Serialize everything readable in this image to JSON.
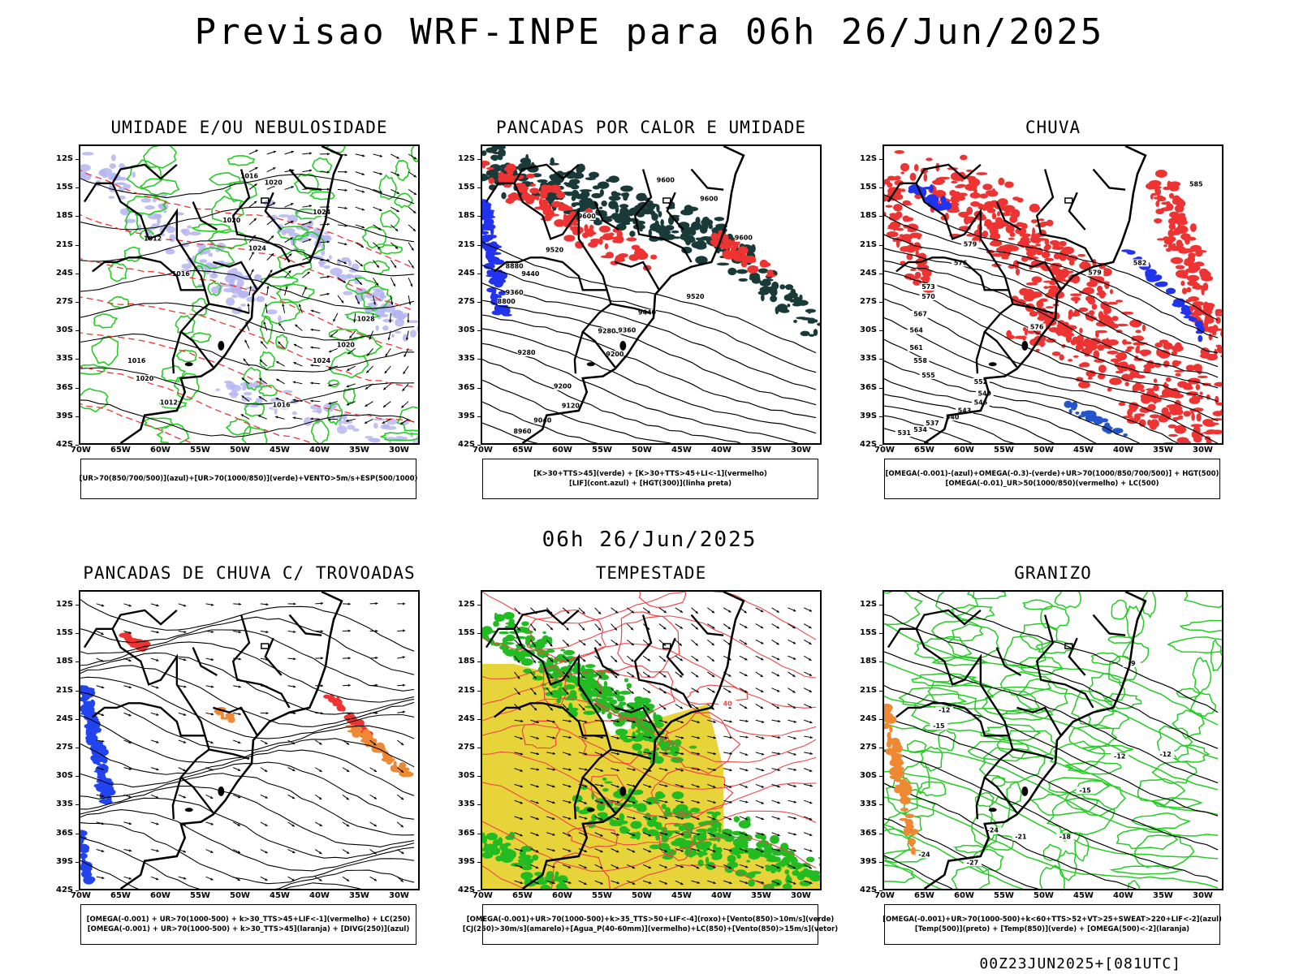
{
  "title": "Previsao WRF-INPE  para 06h 26/Jun/2025",
  "mid_title": "06h 26/Jun/2025",
  "footer": "00Z23JUN2025+[081UTC]",
  "lat_labels": [
    "12S",
    "15S",
    "18S",
    "21S",
    "24S",
    "27S",
    "30S",
    "33S",
    "36S",
    "39S",
    "42S"
  ],
  "lon_labels": [
    "70W",
    "65W",
    "60W",
    "55W",
    "50W",
    "45W",
    "40W",
    "35W",
    "30W"
  ],
  "panels": [
    {
      "title": "UMIDADE E/OU NEBULOSIDADE",
      "legend": [
        "[UR>70(850/700/500)](azul)+[UR>70(1000/850)](verde)+VENTO>5m/s+ESP(500/1000)"
      ],
      "contour_labels": [
        "1016",
        "1020",
        "1024",
        "1012",
        "1016",
        "1020",
        "1024",
        "1028",
        "1020",
        "1024",
        "1016",
        "1012",
        "1020",
        "1016"
      ]
    },
    {
      "title": "PANCADAS POR CALOR E UMIDADE",
      "legend": [
        "[K>30+TTS>45](verde) + [K>30+TTS>45+LI<-1](vermelho)",
        "[LIF](cont.azul) + [HGT(300)](linha preta)"
      ],
      "contour_labels": [
        "9600",
        "9600",
        "9600",
        "9520",
        "9440",
        "9360",
        "9280",
        "9200",
        "9520",
        "9440",
        "9360",
        "9280",
        "9200",
        "9120",
        "9040",
        "8960",
        "8880",
        "8800",
        "9600"
      ]
    },
    {
      "title": "CHUVA",
      "legend": [
        "[OMEGA(-0.001)-(azul)+OMEGA(-0.3)-(verde)+UR>70(1000/850/700/500)] + HGT(500)",
        "[OMEGA(-0.01)_UR>50(1000/850)(vermelho) + LC(500)"
      ],
      "contour_labels": [
        "585",
        "579",
        "576",
        "573",
        "570",
        "567",
        "564",
        "561",
        "558",
        "555",
        "552",
        "549",
        "546",
        "543",
        "540",
        "537",
        "534",
        "531",
        "582",
        "579",
        "576"
      ]
    },
    {
      "title": "PANCADAS DE CHUVA C/ TROVOADAS",
      "legend": [
        "[OMEGA(-0.001) + UR>70(1000-500) + k>30_TTS>45+LIF<-1](vermelho) + LC(250)",
        "[OMEGA(-0.001) + UR>70(1000-500) + k>30_TTS>45](laranja) + [DIVG(250)](azul)"
      ],
      "contour_labels": []
    },
    {
      "title": "TEMPESTADE",
      "legend": [
        "[OMEGA(-0.001)+UR>70(1000-500)+k>35_TTS>50+LIF<-4](roxo)+[Vento(850)>10m/s](verde)",
        "[CJ(250)>30m/s](amarelo)+[Agua_P(40-60mm)](vermelho)+LC(850)+[Vento(850)>15m/s](vetor)"
      ],
      "contour_labels": [
        "40"
      ]
    },
    {
      "title": "GRANIZO",
      "legend": [
        "[OMEGA(-0.001)+UR>70(1000-500)+k<60+TTS>52+VT>25+SWEAT>220+LIF<-2](azul)",
        "[Temp(500)](preto) + [Temp(850)](verde) + [OMEGA(500)<-2](laranja)"
      ],
      "contour_labels": [
        "-9",
        "-12",
        "-15",
        "-12",
        "-12",
        "-15",
        "-18",
        "-21",
        "-24",
        "-27",
        "-24"
      ]
    }
  ]
}
